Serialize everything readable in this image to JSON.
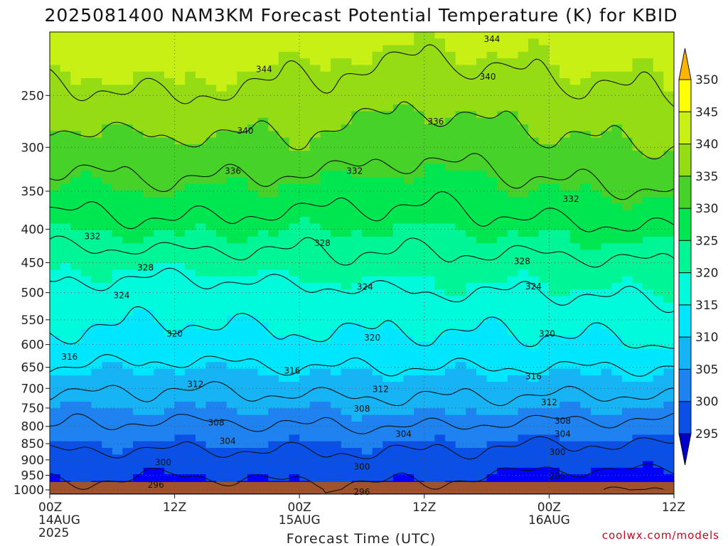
{
  "title": "2025081400 NAM3KM Forecast Potential Temperature (K) for KBID",
  "xlabel": "Forecast Time (UTC)",
  "credit": "coolwx.com/models",
  "colors": {
    "ground": "#a0522d",
    "contour": "#111111",
    "grid": "#555555",
    "credit": "#d0021b",
    "bands": [
      "#0000c8",
      "#0000ff",
      "#0a50e6",
      "#1e82f0",
      "#17b4f5",
      "#00e6ff",
      "#00fadc",
      "#00f596",
      "#00e650",
      "#46d228",
      "#96dc14",
      "#c8f014",
      "#ffff00",
      "#ffb400"
    ]
  },
  "chart_data": {
    "type": "contour",
    "title": "2025081400 NAM3KM Forecast Potential Temperature (K) for KBID",
    "xlabel": "Forecast Time (UTC)",
    "ylabel": "",
    "x_ticks": [
      {
        "hour": 0,
        "label": "00Z",
        "sub": [
          "14AUG",
          "2025"
        ]
      },
      {
        "hour": 12,
        "label": "12Z",
        "sub": []
      },
      {
        "hour": 24,
        "label": "00Z",
        "sub": [
          "15AUG"
        ]
      },
      {
        "hour": 36,
        "label": "12Z",
        "sub": []
      },
      {
        "hour": 48,
        "label": "00Z",
        "sub": [
          "16AUG"
        ]
      },
      {
        "hour": 60,
        "label": "12Z",
        "sub": []
      }
    ],
    "x_range_hours": [
      0,
      60
    ],
    "y_ticks_hpa": [
      250,
      300,
      350,
      400,
      450,
      500,
      550,
      600,
      650,
      700,
      750,
      800,
      850,
      900,
      950,
      1000
    ],
    "y_range_hpa": [
      200,
      1015
    ],
    "y_scale": "log-pressure",
    "grid": true,
    "colorbar_levels": [
      295,
      300,
      305,
      310,
      315,
      320,
      325,
      330,
      335,
      340,
      345,
      350
    ],
    "contour_interval_K": 4,
    "contour_levels": [
      296,
      300,
      304,
      308,
      312,
      316,
      320,
      324,
      328,
      332,
      336,
      340,
      344
    ],
    "profile_hpa": [
      1000,
      950,
      900,
      850,
      800,
      750,
      700,
      650,
      600,
      550,
      500,
      450,
      400,
      350,
      300,
      250,
      200
    ],
    "profile_hours": [
      0,
      12,
      24,
      36,
      48,
      60
    ],
    "profiles_K": [
      [
        299,
        301,
        303,
        305,
        308,
        310,
        313,
        316,
        319,
        321,
        323,
        326,
        330,
        334,
        338,
        343,
        348
      ],
      [
        298,
        300,
        302,
        305,
        307,
        310,
        312,
        315,
        318,
        320,
        322,
        326,
        331,
        335,
        339,
        344,
        349
      ],
      [
        299,
        301,
        303,
        305,
        308,
        310,
        313,
        316,
        319,
        321,
        323,
        327,
        330,
        334,
        339,
        343,
        347
      ],
      [
        299,
        301,
        303,
        305,
        308,
        311,
        313,
        316,
        319,
        321,
        324,
        327,
        330,
        333,
        337,
        341,
        346
      ],
      [
        297,
        299,
        302,
        304,
        307,
        310,
        313,
        316,
        319,
        321,
        324,
        327,
        331,
        335,
        339,
        343,
        347
      ],
      [
        296,
        299,
        302,
        304,
        307,
        310,
        313,
        316,
        320,
        322,
        325,
        328,
        332,
        336,
        340,
        344,
        348
      ]
    ],
    "contour_labels": [
      {
        "value": "344",
        "hour": 42.5,
        "hpa": 205
      },
      {
        "value": "344",
        "hour": 20.6,
        "hpa": 228
      },
      {
        "value": "340",
        "hour": 42.1,
        "hpa": 234
      },
      {
        "value": "336",
        "hour": 37.1,
        "hpa": 274
      },
      {
        "value": "340",
        "hour": 18.8,
        "hpa": 283
      },
      {
        "value": "336",
        "hour": 17.6,
        "hpa": 326
      },
      {
        "value": "332",
        "hour": 29.3,
        "hpa": 326
      },
      {
        "value": "332",
        "hour": 50.1,
        "hpa": 360
      },
      {
        "value": "332",
        "hour": 4.1,
        "hpa": 410
      },
      {
        "value": "328",
        "hour": 26.2,
        "hpa": 420
      },
      {
        "value": "328",
        "hour": 9.2,
        "hpa": 458
      },
      {
        "value": "328",
        "hour": 45.4,
        "hpa": 448
      },
      {
        "value": "324",
        "hour": 6.9,
        "hpa": 505
      },
      {
        "value": "324",
        "hour": 30.3,
        "hpa": 490
      },
      {
        "value": "324",
        "hour": 46.5,
        "hpa": 489
      },
      {
        "value": "320",
        "hour": 12.0,
        "hpa": 578
      },
      {
        "value": "320",
        "hour": 31.0,
        "hpa": 586
      },
      {
        "value": "320",
        "hour": 47.8,
        "hpa": 578
      },
      {
        "value": "316",
        "hour": 1.9,
        "hpa": 627
      },
      {
        "value": "316",
        "hour": 23.3,
        "hpa": 658
      },
      {
        "value": "316",
        "hour": 46.5,
        "hpa": 671
      },
      {
        "value": "312",
        "hour": 14.0,
        "hpa": 690
      },
      {
        "value": "312",
        "hour": 31.8,
        "hpa": 702
      },
      {
        "value": "312",
        "hour": 48.0,
        "hpa": 735
      },
      {
        "value": "308",
        "hour": 30.0,
        "hpa": 752
      },
      {
        "value": "308",
        "hour": 16.0,
        "hpa": 790
      },
      {
        "value": "308",
        "hour": 49.3,
        "hpa": 785
      },
      {
        "value": "304",
        "hour": 34.0,
        "hpa": 822
      },
      {
        "value": "304",
        "hour": 17.1,
        "hpa": 843
      },
      {
        "value": "304",
        "hour": 49.3,
        "hpa": 822
      },
      {
        "value": "300",
        "hour": 48.8,
        "hpa": 876
      },
      {
        "value": "300",
        "hour": 10.9,
        "hpa": 908
      },
      {
        "value": "300",
        "hour": 30.0,
        "hpa": 922
      },
      {
        "value": "296",
        "hour": 48.8,
        "hpa": 952
      },
      {
        "value": "296",
        "hour": 10.2,
        "hpa": 982
      },
      {
        "value": "296",
        "hour": 30.0,
        "hpa": 1008
      }
    ]
  }
}
